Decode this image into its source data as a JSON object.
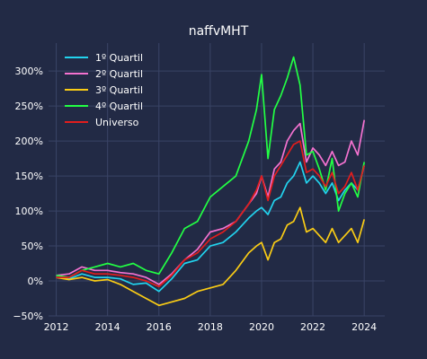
{
  "chart_data": {
    "type": "line",
    "title": "naffvMHT",
    "xlabel": "",
    "ylabel": "",
    "xlim": [
      2011.7,
      2024.8
    ],
    "ylim": [
      -50,
      340
    ],
    "x_ticks": [
      2012,
      2014,
      2016,
      2018,
      2020,
      2022,
      2024
    ],
    "x_tick_labels": [
      "2012",
      "2014",
      "2016",
      "2018",
      "2020",
      "2022",
      "2024"
    ],
    "y_ticks": [
      -50,
      0,
      50,
      100,
      150,
      200,
      250,
      300
    ],
    "y_tick_labels": [
      "−50%",
      "0%",
      "50%",
      "100%",
      "150%",
      "200%",
      "250%",
      "300%"
    ],
    "grid": true,
    "legend_position": "top-left",
    "x": [
      2012.0,
      2012.5,
      2013.0,
      2013.5,
      2014.0,
      2014.5,
      2015.0,
      2015.5,
      2016.0,
      2016.5,
      2017.0,
      2017.5,
      2018.0,
      2018.5,
      2019.0,
      2019.5,
      2019.8,
      2020.0,
      2020.25,
      2020.5,
      2020.75,
      2021.0,
      2021.25,
      2021.5,
      2021.75,
      2022.0,
      2022.25,
      2022.5,
      2022.75,
      2023.0,
      2023.25,
      2023.5,
      2023.75,
      2024.0
    ],
    "series": [
      {
        "name": "1º Quartil",
        "color": "#22d3ee",
        "values": [
          5,
          3,
          10,
          5,
          5,
          3,
          -5,
          -3,
          -15,
          3,
          25,
          30,
          50,
          55,
          70,
          90,
          100,
          105,
          95,
          115,
          120,
          140,
          150,
          170,
          140,
          150,
          140,
          125,
          140,
          115,
          130,
          140,
          130,
          165
        ]
      },
      {
        "name": "2º Quartil",
        "color": "#f472d0",
        "values": [
          8,
          10,
          20,
          15,
          15,
          12,
          10,
          5,
          -5,
          10,
          30,
          45,
          70,
          75,
          85,
          110,
          125,
          150,
          120,
          160,
          170,
          200,
          215,
          225,
          170,
          190,
          180,
          165,
          185,
          165,
          170,
          200,
          180,
          230
        ]
      },
      {
        "name": "3º Quartil",
        "color": "#facc15",
        "values": [
          5,
          2,
          5,
          0,
          2,
          -5,
          -15,
          -25,
          -35,
          -30,
          -25,
          -15,
          -10,
          -5,
          15,
          40,
          50,
          55,
          30,
          55,
          60,
          80,
          85,
          105,
          70,
          75,
          65,
          55,
          75,
          55,
          65,
          75,
          55,
          88
        ]
      },
      {
        "name": "4º Quartil",
        "color": "#22ff44",
        "values": [
          8,
          5,
          15,
          20,
          25,
          20,
          25,
          15,
          10,
          40,
          75,
          85,
          120,
          135,
          150,
          200,
          245,
          295,
          175,
          245,
          265,
          290,
          320,
          280,
          180,
          185,
          160,
          130,
          175,
          100,
          125,
          140,
          120,
          170
        ]
      },
      {
        "name": "Universo",
        "color": "#e11d1d",
        "values": [
          5,
          5,
          15,
          10,
          10,
          8,
          5,
          0,
          -8,
          8,
          30,
          40,
          60,
          70,
          85,
          110,
          130,
          150,
          115,
          150,
          165,
          180,
          195,
          200,
          155,
          160,
          150,
          135,
          155,
          125,
          135,
          155,
          130,
          165
        ]
      }
    ]
  }
}
